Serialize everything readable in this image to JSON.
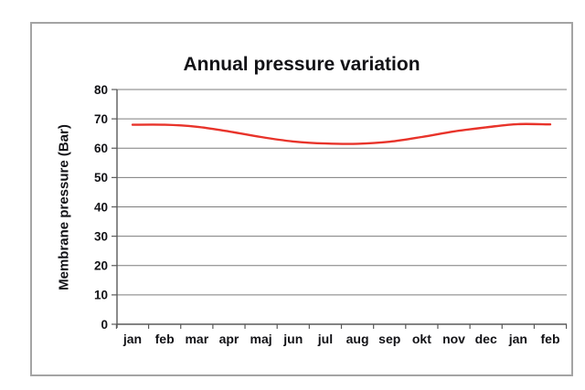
{
  "chart_data": {
    "type": "line",
    "title": "Annual pressure variation",
    "xlabel": "",
    "ylabel": "Membrane pressure (Bar)",
    "categories": [
      "jan",
      "feb",
      "mar",
      "apr",
      "maj",
      "jun",
      "jul",
      "aug",
      "sep",
      "okt",
      "nov",
      "dec",
      "jan",
      "feb"
    ],
    "values": [
      68,
      68,
      67.3,
      65.7,
      63.8,
      62.3,
      61.6,
      61.5,
      62.2,
      63.8,
      65.7,
      67.1,
      68.2,
      68.1
    ],
    "ylim": [
      0,
      80
    ],
    "yticks": [
      0,
      10,
      20,
      30,
      40,
      50,
      60,
      70,
      80
    ],
    "grid": "horizontal",
    "legend": "none",
    "line_color": "#e8332a"
  },
  "colors": {
    "background": "#ffffff",
    "frame_border": "#a4a4a4",
    "gridline": "#7d7d7d",
    "axis": "#5a5a5a",
    "text": "#121216",
    "line": "#e8332a"
  }
}
